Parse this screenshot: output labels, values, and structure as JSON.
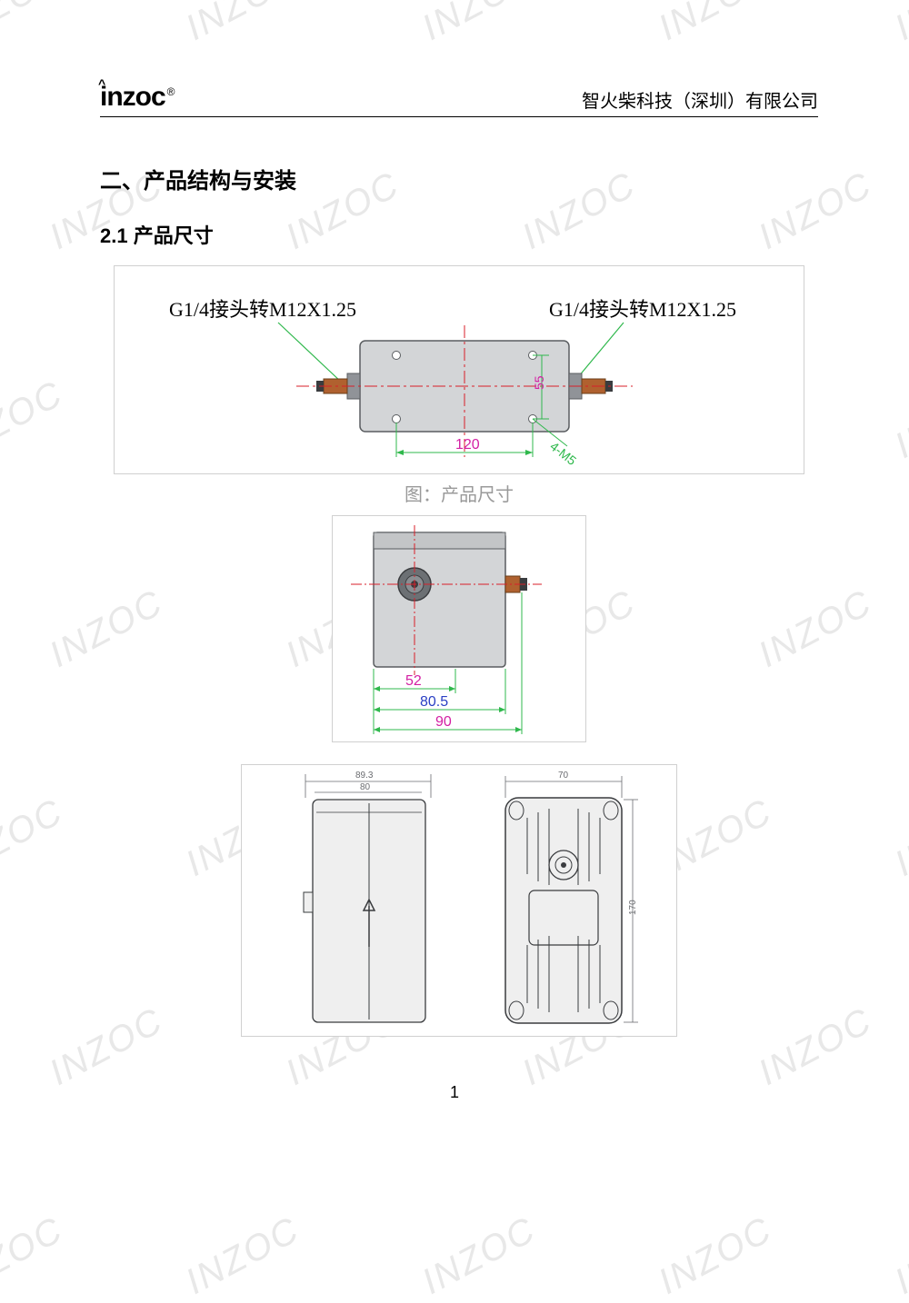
{
  "watermark_text": "INZOC",
  "header": {
    "logo_text": "inzoc",
    "company": "智火柴科技（深圳）有限公司"
  },
  "section_title": "二、产品结构与安装",
  "subsection_title": "2.1 产品尺寸",
  "figure1": {
    "caption": "图：产品尺寸",
    "label_left": "G1/4接头转M12X1.25",
    "label_right": "G1/4接头转M12X1.25",
    "dim_width": "120",
    "dim_height": "55",
    "dim_holes": "4-M5",
    "colors": {
      "body_fill": "#d3d5d7",
      "body_stroke": "#5a5d60",
      "connector_fill": "#b0612f",
      "nut_fill": "#909398",
      "centerline": "#d81f2a",
      "dim_line": "#2fb84c",
      "dim_text": "#d31fa3",
      "hole_label": "#2fb84c"
    }
  },
  "figure2": {
    "dim_52": "52",
    "dim_80_5": "80.5",
    "dim_90": "90",
    "colors": {
      "body_fill": "#d3d5d7",
      "body_stroke": "#5a5d60",
      "circle_fill": "#6c7074",
      "connector": "#b0612f",
      "centerline": "#d81f2a",
      "dim_line": "#2fb84c",
      "dim_52_color": "#d31fa3",
      "dim_80_color": "#2a3fc4",
      "dim_90_color": "#d31fa3"
    }
  },
  "figure3": {
    "left_top_dim": "89.3",
    "left_sub_dim": "80",
    "right_top_dim": "70",
    "right_side_dim": "170",
    "colors": {
      "stroke": "#3a3c3f",
      "fill": "#efefef",
      "dim": "#6a6c70"
    }
  },
  "page_number": "1"
}
